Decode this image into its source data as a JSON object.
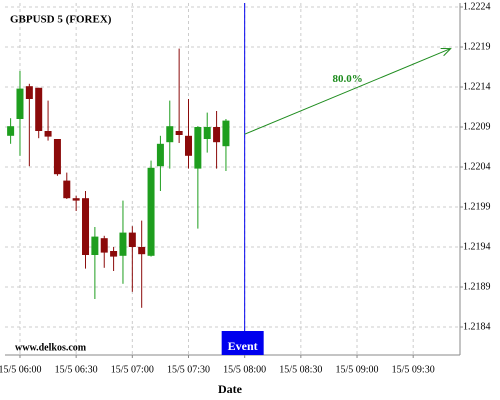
{
  "chart_data": {
    "type": "candlestick",
    "title": "GBPUSD 5 (FOREX)",
    "xlabel": "Date",
    "watermark": "www.delkos.com",
    "x": [
      0,
      1,
      2,
      3,
      4,
      5,
      6,
      7,
      8,
      9,
      10,
      11,
      12,
      13,
      14,
      15,
      16,
      17,
      18,
      19,
      20,
      21,
      22,
      23
    ],
    "open": [
      1.22079,
      1.221,
      1.22141,
      1.22139,
      1.22085,
      1.22075,
      1.22023,
      1.22001,
      1.22001,
      1.2193,
      1.21951,
      1.21935,
      1.21929,
      1.21958,
      1.2194,
      1.21929,
      1.22041,
      1.22071,
      1.22085,
      1.22079,
      1.22038,
      1.22075,
      1.2209,
      1.22066
    ],
    "high": [
      1.22101,
      1.2216,
      1.22144,
      1.22139,
      1.22123,
      1.22075,
      1.22033,
      1.22004,
      1.2201,
      1.21965,
      1.21954,
      1.2194,
      1.21998,
      1.21966,
      1.21973,
      1.22048,
      1.22079,
      1.22123,
      1.22188,
      1.22125,
      1.22091,
      1.22108,
      1.2211,
      1.221
    ],
    "low": [
      1.22069,
      1.22054,
      1.22041,
      1.22076,
      1.22073,
      1.22029,
      1.22,
      1.21985,
      1.21913,
      1.21875,
      1.21914,
      1.2191,
      1.21894,
      1.21884,
      1.21864,
      1.21928,
      1.2201,
      1.22038,
      1.2207,
      1.22038,
      1.21963,
      1.22058,
      1.22038,
      1.22035
    ],
    "close": [
      1.22091,
      1.22138,
      1.22125,
      1.22085,
      1.22078,
      1.22031,
      1.22001,
      1.21998,
      1.2193,
      1.21953,
      1.21933,
      1.21928,
      1.21958,
      1.2194,
      1.21931,
      1.22039,
      1.22069,
      1.22091,
      1.2208,
      1.22054,
      1.2209,
      1.2209,
      1.22071,
      1.22098
    ],
    "up_color": "#1e9e1e",
    "down_color": "#8b0a0a",
    "xlim": [
      -0.6,
      48
    ],
    "ylim": [
      1.21805,
      1.22245
    ],
    "xticks": [
      {
        "value": 1,
        "label": "15/5 06:00"
      },
      {
        "value": 7,
        "label": "15/5 06:30"
      },
      {
        "value": 13,
        "label": "15/5 07:00"
      },
      {
        "value": 19,
        "label": "15/5 07:30"
      },
      {
        "value": 25,
        "label": "15/5 08:00"
      },
      {
        "value": 31,
        "label": "15/5 08:30"
      },
      {
        "value": 37,
        "label": "15/5 09:00"
      },
      {
        "value": 43,
        "label": "15/5 09:30"
      }
    ],
    "yticks": [
      1.2184,
      1.2189,
      1.2194,
      1.2199,
      1.2204,
      1.2209,
      1.2214,
      1.2219,
      1.2224
    ],
    "grid": true,
    "event": {
      "x": 25,
      "label": "Event",
      "color": "#0000ee"
    },
    "forecast": {
      "x": [
        25,
        47
      ],
      "y": [
        1.22081,
        1.22188
      ],
      "label": "80.0%",
      "color": "#1e8c1e"
    }
  }
}
